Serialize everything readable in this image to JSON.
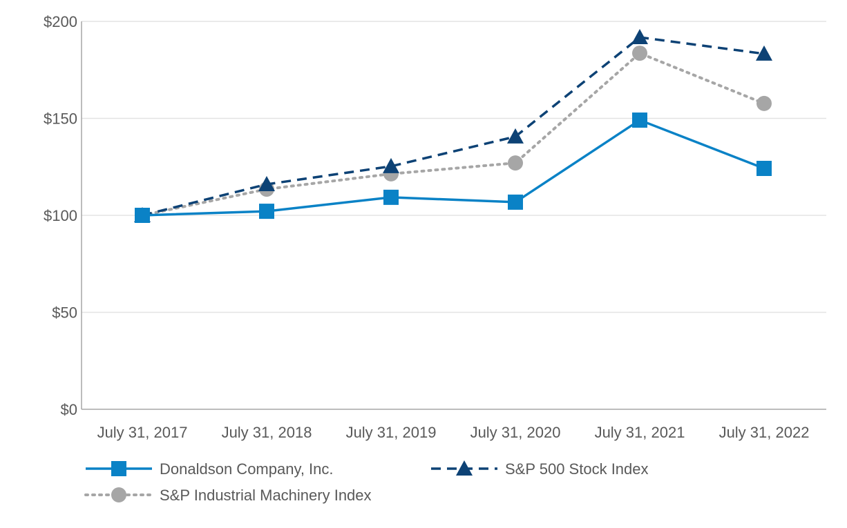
{
  "chart_data": {
    "type": "line",
    "title": "",
    "xlabel": "",
    "ylabel": "",
    "categories": [
      "July 31, 2017",
      "July 31, 2018",
      "July 31, 2019",
      "July 31, 2020",
      "July 31, 2021",
      "July 31, 2022"
    ],
    "ylim": [
      0,
      200
    ],
    "yticks": [
      0,
      50,
      100,
      150,
      200
    ],
    "ytick_labels": [
      "$0",
      "$50",
      "$100",
      "$150",
      "$200"
    ],
    "grid": true,
    "legend_position": "bottom",
    "series": [
      {
        "name": "Donaldson Company, Inc.",
        "color": "#0a82c6",
        "line": "solid",
        "marker": "square",
        "values": [
          100,
          102.1,
          109.3,
          106.8,
          149.1,
          124.2
        ]
      },
      {
        "name": "S&P 500 Stock Index",
        "color": "#0d4275",
        "line": "dashed",
        "marker": "triangle",
        "values": [
          100,
          116.0,
          125.3,
          140.6,
          191.8,
          183.3
        ]
      },
      {
        "name": "S&P Industrial Machinery Index",
        "color": "#a6a6a6",
        "line": "dotted",
        "marker": "circle",
        "values": [
          100,
          113.5,
          121.4,
          127.0,
          183.6,
          157.7
        ]
      }
    ]
  }
}
